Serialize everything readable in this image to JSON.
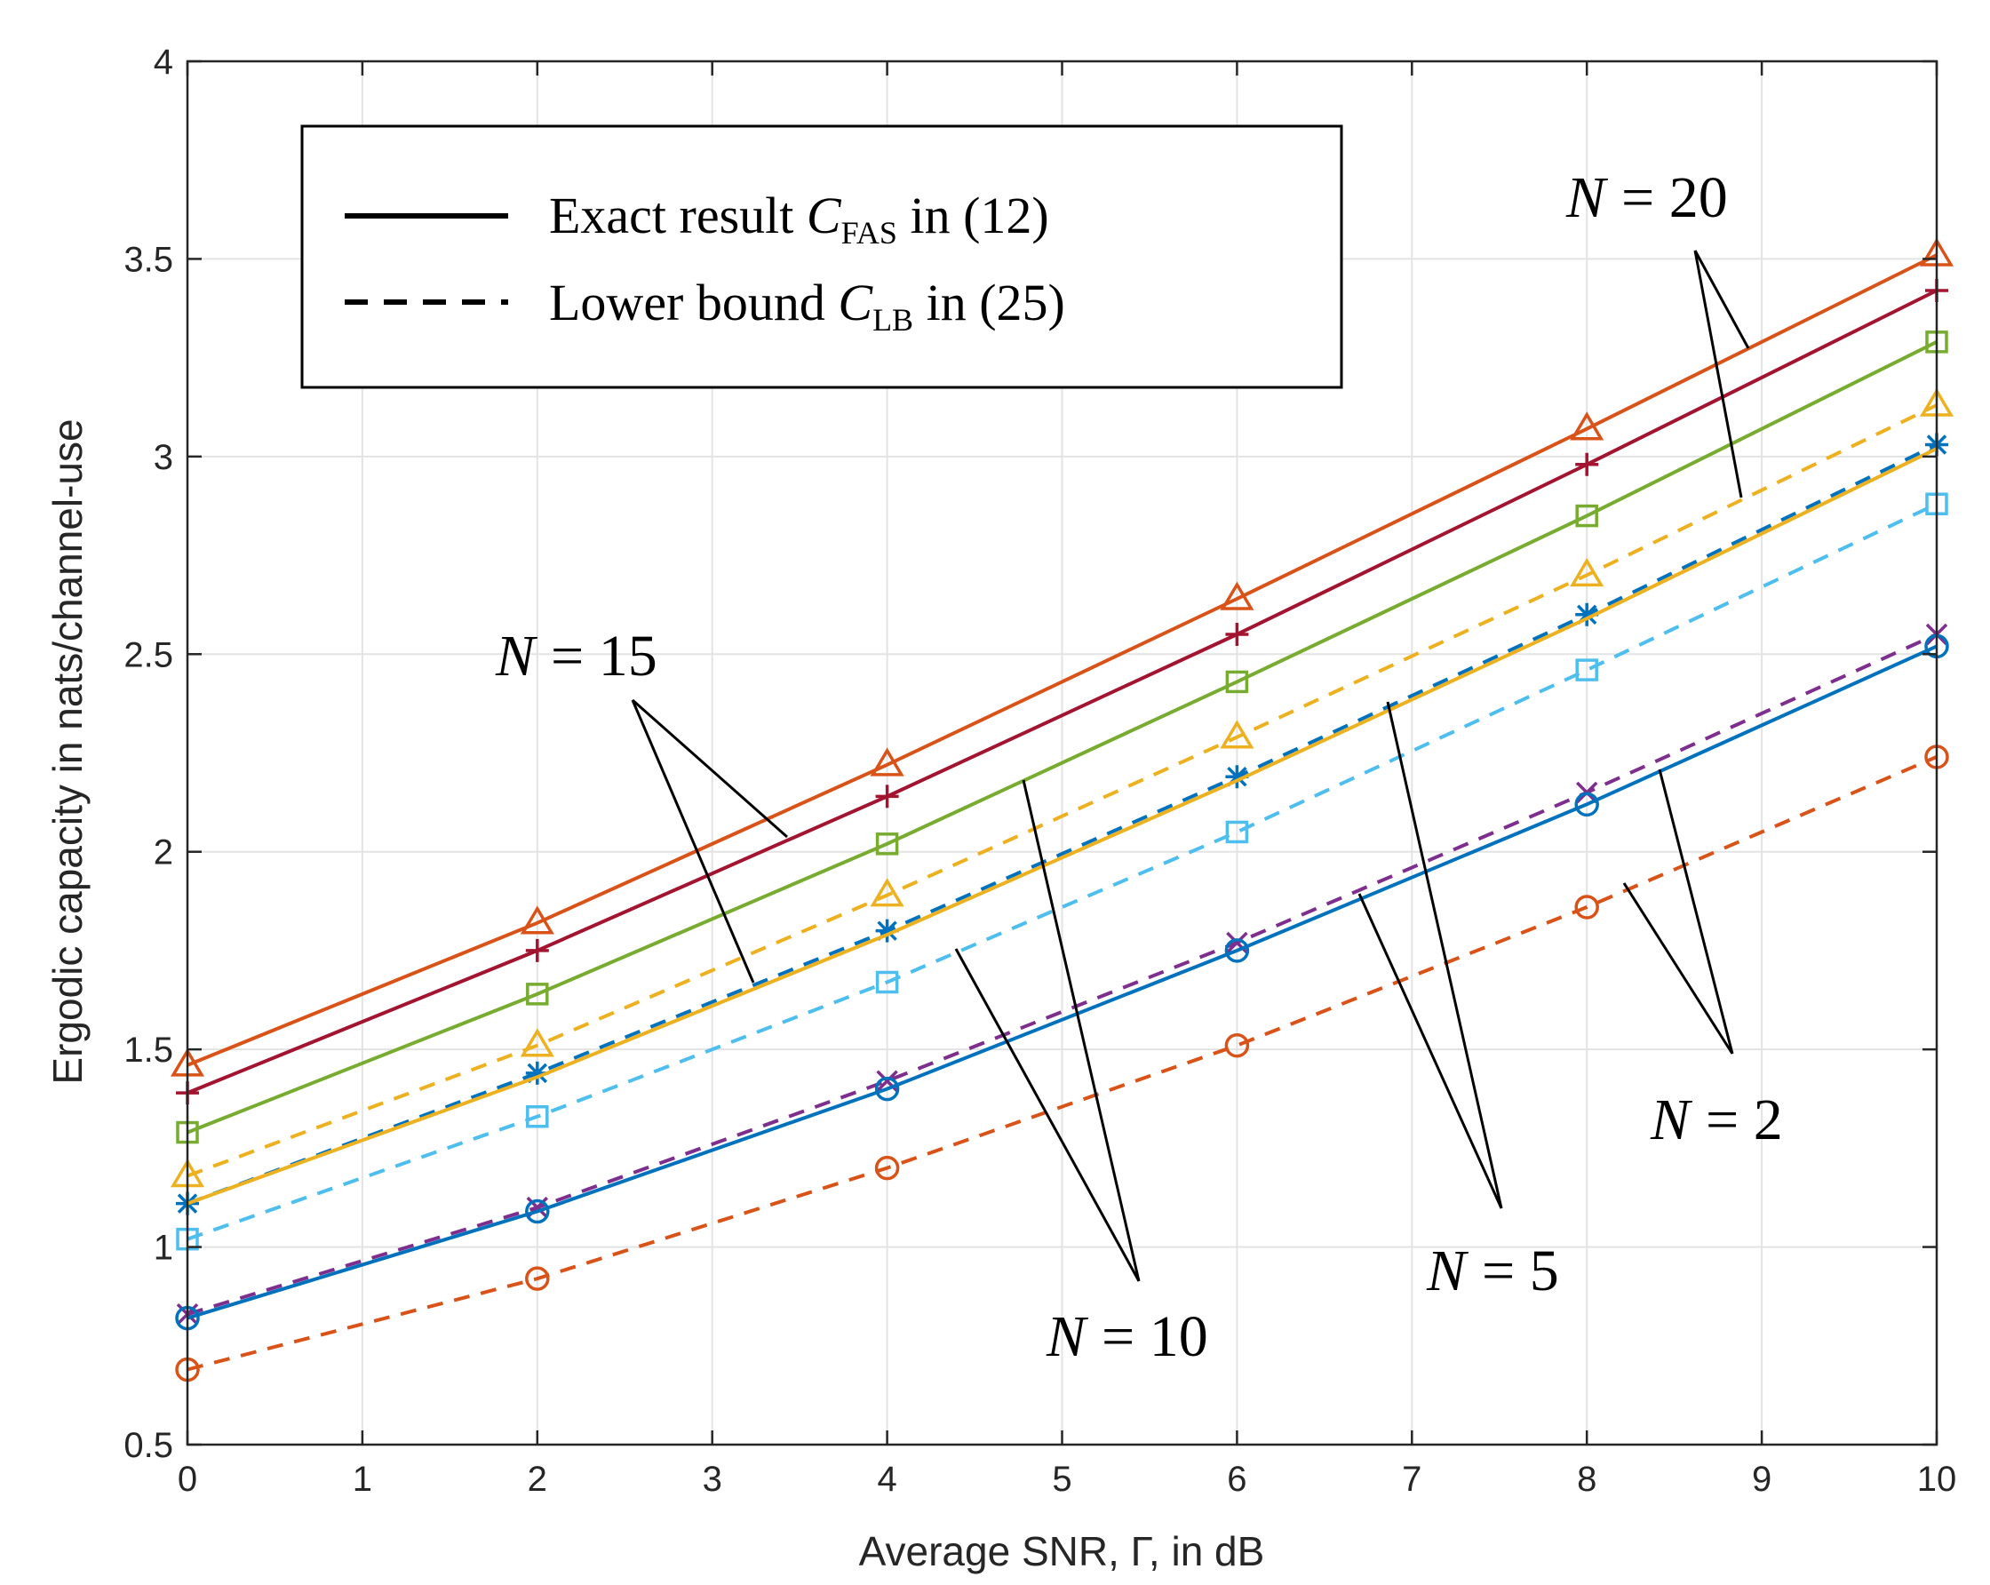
{
  "chart_data": {
    "type": "line",
    "xlabel": "Average SNR, Γ, in dB",
    "ylabel": "Ergodic capacity in nats/channel-use",
    "xlim": [
      0,
      10
    ],
    "ylim": [
      0.5,
      4
    ],
    "xticks": [
      "0",
      "1",
      "2",
      "3",
      "4",
      "5",
      "6",
      "7",
      "8",
      "9",
      "10"
    ],
    "yticks": [
      "0.5",
      "1",
      "1.5",
      "2",
      "2.5",
      "3",
      "3.5",
      "4"
    ],
    "grid": true,
    "x": [
      0,
      2,
      4,
      6,
      8,
      10
    ],
    "series": [
      {
        "name": "N = 20, exact",
        "style": "solid",
        "marker": "triangle",
        "color": "#D95319",
        "values": [
          1.46,
          1.82,
          2.22,
          2.64,
          3.07,
          3.51
        ]
      },
      {
        "name": "N = 15, exact",
        "style": "solid",
        "marker": "plus",
        "color": "#A2142F",
        "values": [
          1.39,
          1.75,
          2.14,
          2.55,
          2.98,
          3.42
        ]
      },
      {
        "name": "N = 10, exact",
        "style": "solid",
        "marker": "square",
        "color": "#77AC30",
        "values": [
          1.29,
          1.64,
          2.02,
          2.43,
          2.85,
          3.29
        ]
      },
      {
        "name": "N = 20, lower bound",
        "style": "dashed",
        "marker": "triangle",
        "color": "#EDB120",
        "values": [
          1.18,
          1.51,
          1.89,
          2.29,
          2.7,
          3.13
        ]
      },
      {
        "name": "N = 15, lower bound",
        "style": "dashed",
        "marker": "star",
        "color": "#0072BD",
        "values": [
          1.11,
          1.44,
          1.8,
          2.19,
          2.6,
          3.03
        ]
      },
      {
        "name": "N = 5, exact",
        "style": "solid",
        "marker": "none",
        "color": "#EDB120",
        "values": [
          1.11,
          1.43,
          1.79,
          2.18,
          2.59,
          3.02
        ]
      },
      {
        "name": "N = 10, lower bound",
        "style": "dashed",
        "marker": "square",
        "color": "#4DBEEE",
        "values": [
          1.02,
          1.33,
          1.67,
          2.05,
          2.46,
          2.88
        ]
      },
      {
        "name": "N = 5, lower bound",
        "style": "dashed",
        "marker": "x",
        "color": "#7E2F8E",
        "values": [
          0.83,
          1.1,
          1.42,
          1.77,
          2.15,
          2.55
        ]
      },
      {
        "name": "N = 2, exact",
        "style": "solid",
        "marker": "circle",
        "color": "#0072BD",
        "values": [
          0.82,
          1.09,
          1.4,
          1.75,
          2.12,
          2.52
        ]
      },
      {
        "name": "N = 2, lower bound",
        "style": "dashed",
        "marker": "circle",
        "color": "#D95319",
        "values": [
          0.69,
          0.92,
          1.2,
          1.51,
          1.86,
          2.24
        ]
      }
    ],
    "legend": {
      "placement": "top-left",
      "entries": [
        {
          "style": "solid",
          "label_prefix": "Exact result ",
          "symbol": "C",
          "subscript": "FAS",
          "label_suffix": " in (12)"
        },
        {
          "style": "dashed",
          "label_prefix": "Lower bound ",
          "symbol": "C",
          "subscript": "LB",
          "label_suffix": " in (25)"
        }
      ]
    },
    "annotations": [
      {
        "var": "N",
        "text": "= 20"
      },
      {
        "var": "N",
        "text": "= 15"
      },
      {
        "var": "N",
        "text": "= 10"
      },
      {
        "var": "N",
        "text": "= 5"
      },
      {
        "var": "N",
        "text": "= 2"
      }
    ]
  }
}
